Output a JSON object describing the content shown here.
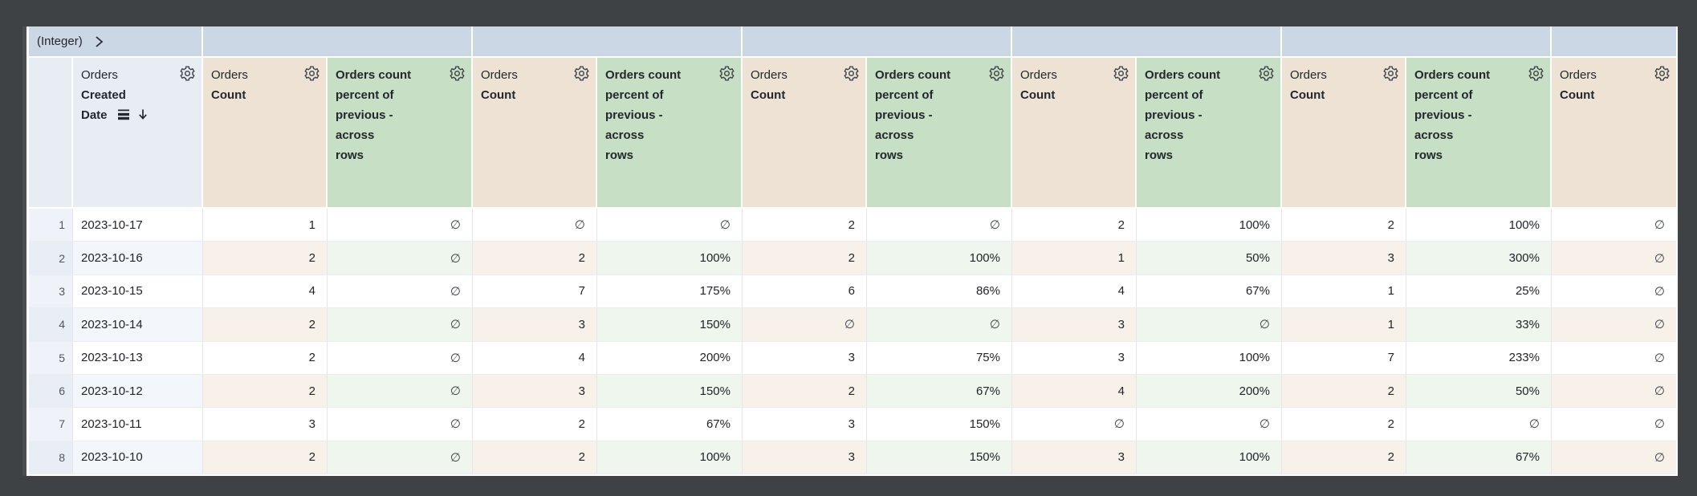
{
  "colors": {
    "window-bg": "#3e4245",
    "band-bg": "#ccd7e5",
    "dim-head-bg": "#e8edf4",
    "count-head-bg": "#eee2d4",
    "pct-head-bg": "#c7dfc5",
    "rownum-bg": "#eff3f9",
    "rownum-stripe": "#e9eef6",
    "date-stripe": "#f3f6fa",
    "count-stripe": "#f8f1ea",
    "pct-stripe": "#eff6ee",
    "head-ink": "#23282c",
    "body-ink": "#212529",
    "null-ink": "#3c4245"
  },
  "icons": {
    "pivot_expand": "chevron-right-icon",
    "header_menu": "gear-icon",
    "date_sort": [
      "list-icon",
      "arrow-down-icon"
    ]
  },
  "pivot_band": {
    "label": "(Integer)",
    "groups": [
      {
        "value": "",
        "span": 2
      },
      {
        "value": "",
        "span": 2
      },
      {
        "value": "",
        "span": 2
      },
      {
        "value": "",
        "span": 2
      },
      {
        "value": "",
        "span": 2
      },
      {
        "value": "",
        "span": 1
      }
    ]
  },
  "header": {
    "dimension": {
      "view": "Orders",
      "field_lines": [
        "Created",
        "Date"
      ]
    },
    "measure_count": {
      "view": "Orders",
      "field": "Count"
    },
    "measure_pct": {
      "lines": [
        "Orders count",
        "percent of",
        "previous -",
        "across",
        "rows"
      ]
    }
  },
  "table": {
    "null_symbol": "∅",
    "measure_columns": [
      "count",
      "pct",
      "count",
      "pct",
      "count",
      "pct",
      "count",
      "pct",
      "count",
      "pct",
      "count"
    ],
    "rows": [
      {
        "num": "1",
        "date": "2023-10-17",
        "values": [
          "1",
          "∅",
          "∅",
          "∅",
          "2",
          "∅",
          "2",
          "100%",
          "2",
          "100%",
          "∅"
        ]
      },
      {
        "num": "2",
        "date": "2023-10-16",
        "values": [
          "2",
          "∅",
          "2",
          "100%",
          "2",
          "100%",
          "1",
          "50%",
          "3",
          "300%",
          "∅"
        ]
      },
      {
        "num": "3",
        "date": "2023-10-15",
        "values": [
          "4",
          "∅",
          "7",
          "175%",
          "6",
          "86%",
          "4",
          "67%",
          "1",
          "25%",
          "∅"
        ]
      },
      {
        "num": "4",
        "date": "2023-10-14",
        "values": [
          "2",
          "∅",
          "3",
          "150%",
          "∅",
          "∅",
          "3",
          "∅",
          "1",
          "33%",
          "∅"
        ]
      },
      {
        "num": "5",
        "date": "2023-10-13",
        "values": [
          "2",
          "∅",
          "4",
          "200%",
          "3",
          "75%",
          "3",
          "100%",
          "7",
          "233%",
          "∅"
        ]
      },
      {
        "num": "6",
        "date": "2023-10-12",
        "values": [
          "2",
          "∅",
          "3",
          "150%",
          "2",
          "67%",
          "4",
          "200%",
          "2",
          "50%",
          "∅"
        ]
      },
      {
        "num": "7",
        "date": "2023-10-11",
        "values": [
          "3",
          "∅",
          "2",
          "67%",
          "3",
          "150%",
          "∅",
          "∅",
          "2",
          "∅",
          "∅"
        ]
      },
      {
        "num": "8",
        "date": "2023-10-10",
        "values": [
          "2",
          "∅",
          "2",
          "100%",
          "3",
          "150%",
          "3",
          "100%",
          "2",
          "67%",
          "∅"
        ]
      }
    ]
  }
}
